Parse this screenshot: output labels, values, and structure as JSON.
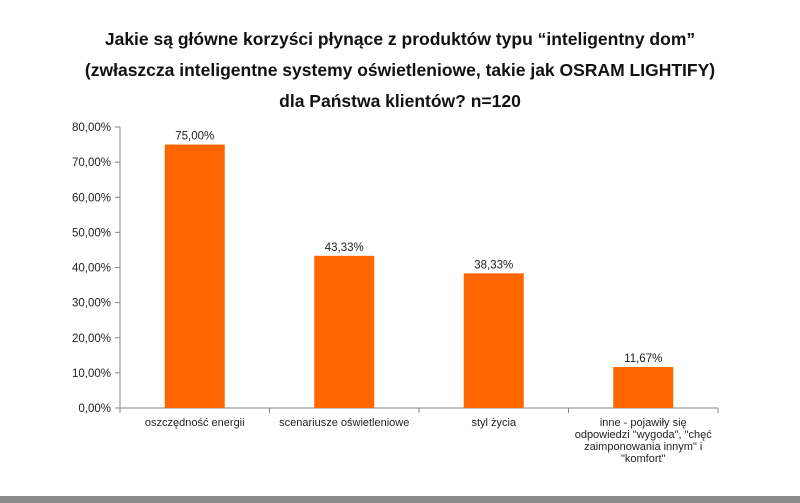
{
  "title": {
    "line1": "Jakie są główne korzyści płynące z produktów typu “inteligentny dom”",
    "line2": "(zwłaszcza inteligentne systemy oświetleniowe, takie jak OSRAM LIGHTIFY)",
    "line3": "dla Państwa klientów? n=120"
  },
  "colors": {
    "bar": "#ff6600",
    "bottom_bar": "#8a8a8a"
  },
  "chart_data": {
    "type": "bar",
    "title": "Jakie są główne korzyści płynące z produktów typu “inteligentny dom” (zwłaszcza inteligentne systemy oświetleniowe, takie jak OSRAM LIGHTIFY) dla Państwa klientów? n=120",
    "categories": [
      [
        "oszczędność energii"
      ],
      [
        "scenariusze oświetleniowe"
      ],
      [
        "styl życia"
      ],
      [
        "inne - pojawiły się",
        "odpowiedzi \"wygoda\", \"chęć",
        "zaimponowania innym\" i",
        "\"komfort\""
      ]
    ],
    "values": [
      75.0,
      43.33,
      38.33,
      11.67
    ],
    "data_labels": [
      "75,00%",
      "43,33%",
      "38,33%",
      "11,67%"
    ],
    "ylim": [
      0,
      80
    ],
    "yticks": [
      0,
      10,
      20,
      30,
      40,
      50,
      60,
      70,
      80
    ],
    "ytick_labels": [
      "0,00%",
      "10,00%",
      "20,00%",
      "30,00%",
      "40,00%",
      "50,00%",
      "60,00%",
      "70,00%",
      "80,00%"
    ],
    "xlabel": "",
    "ylabel": "",
    "grid": false,
    "legend": "none"
  }
}
